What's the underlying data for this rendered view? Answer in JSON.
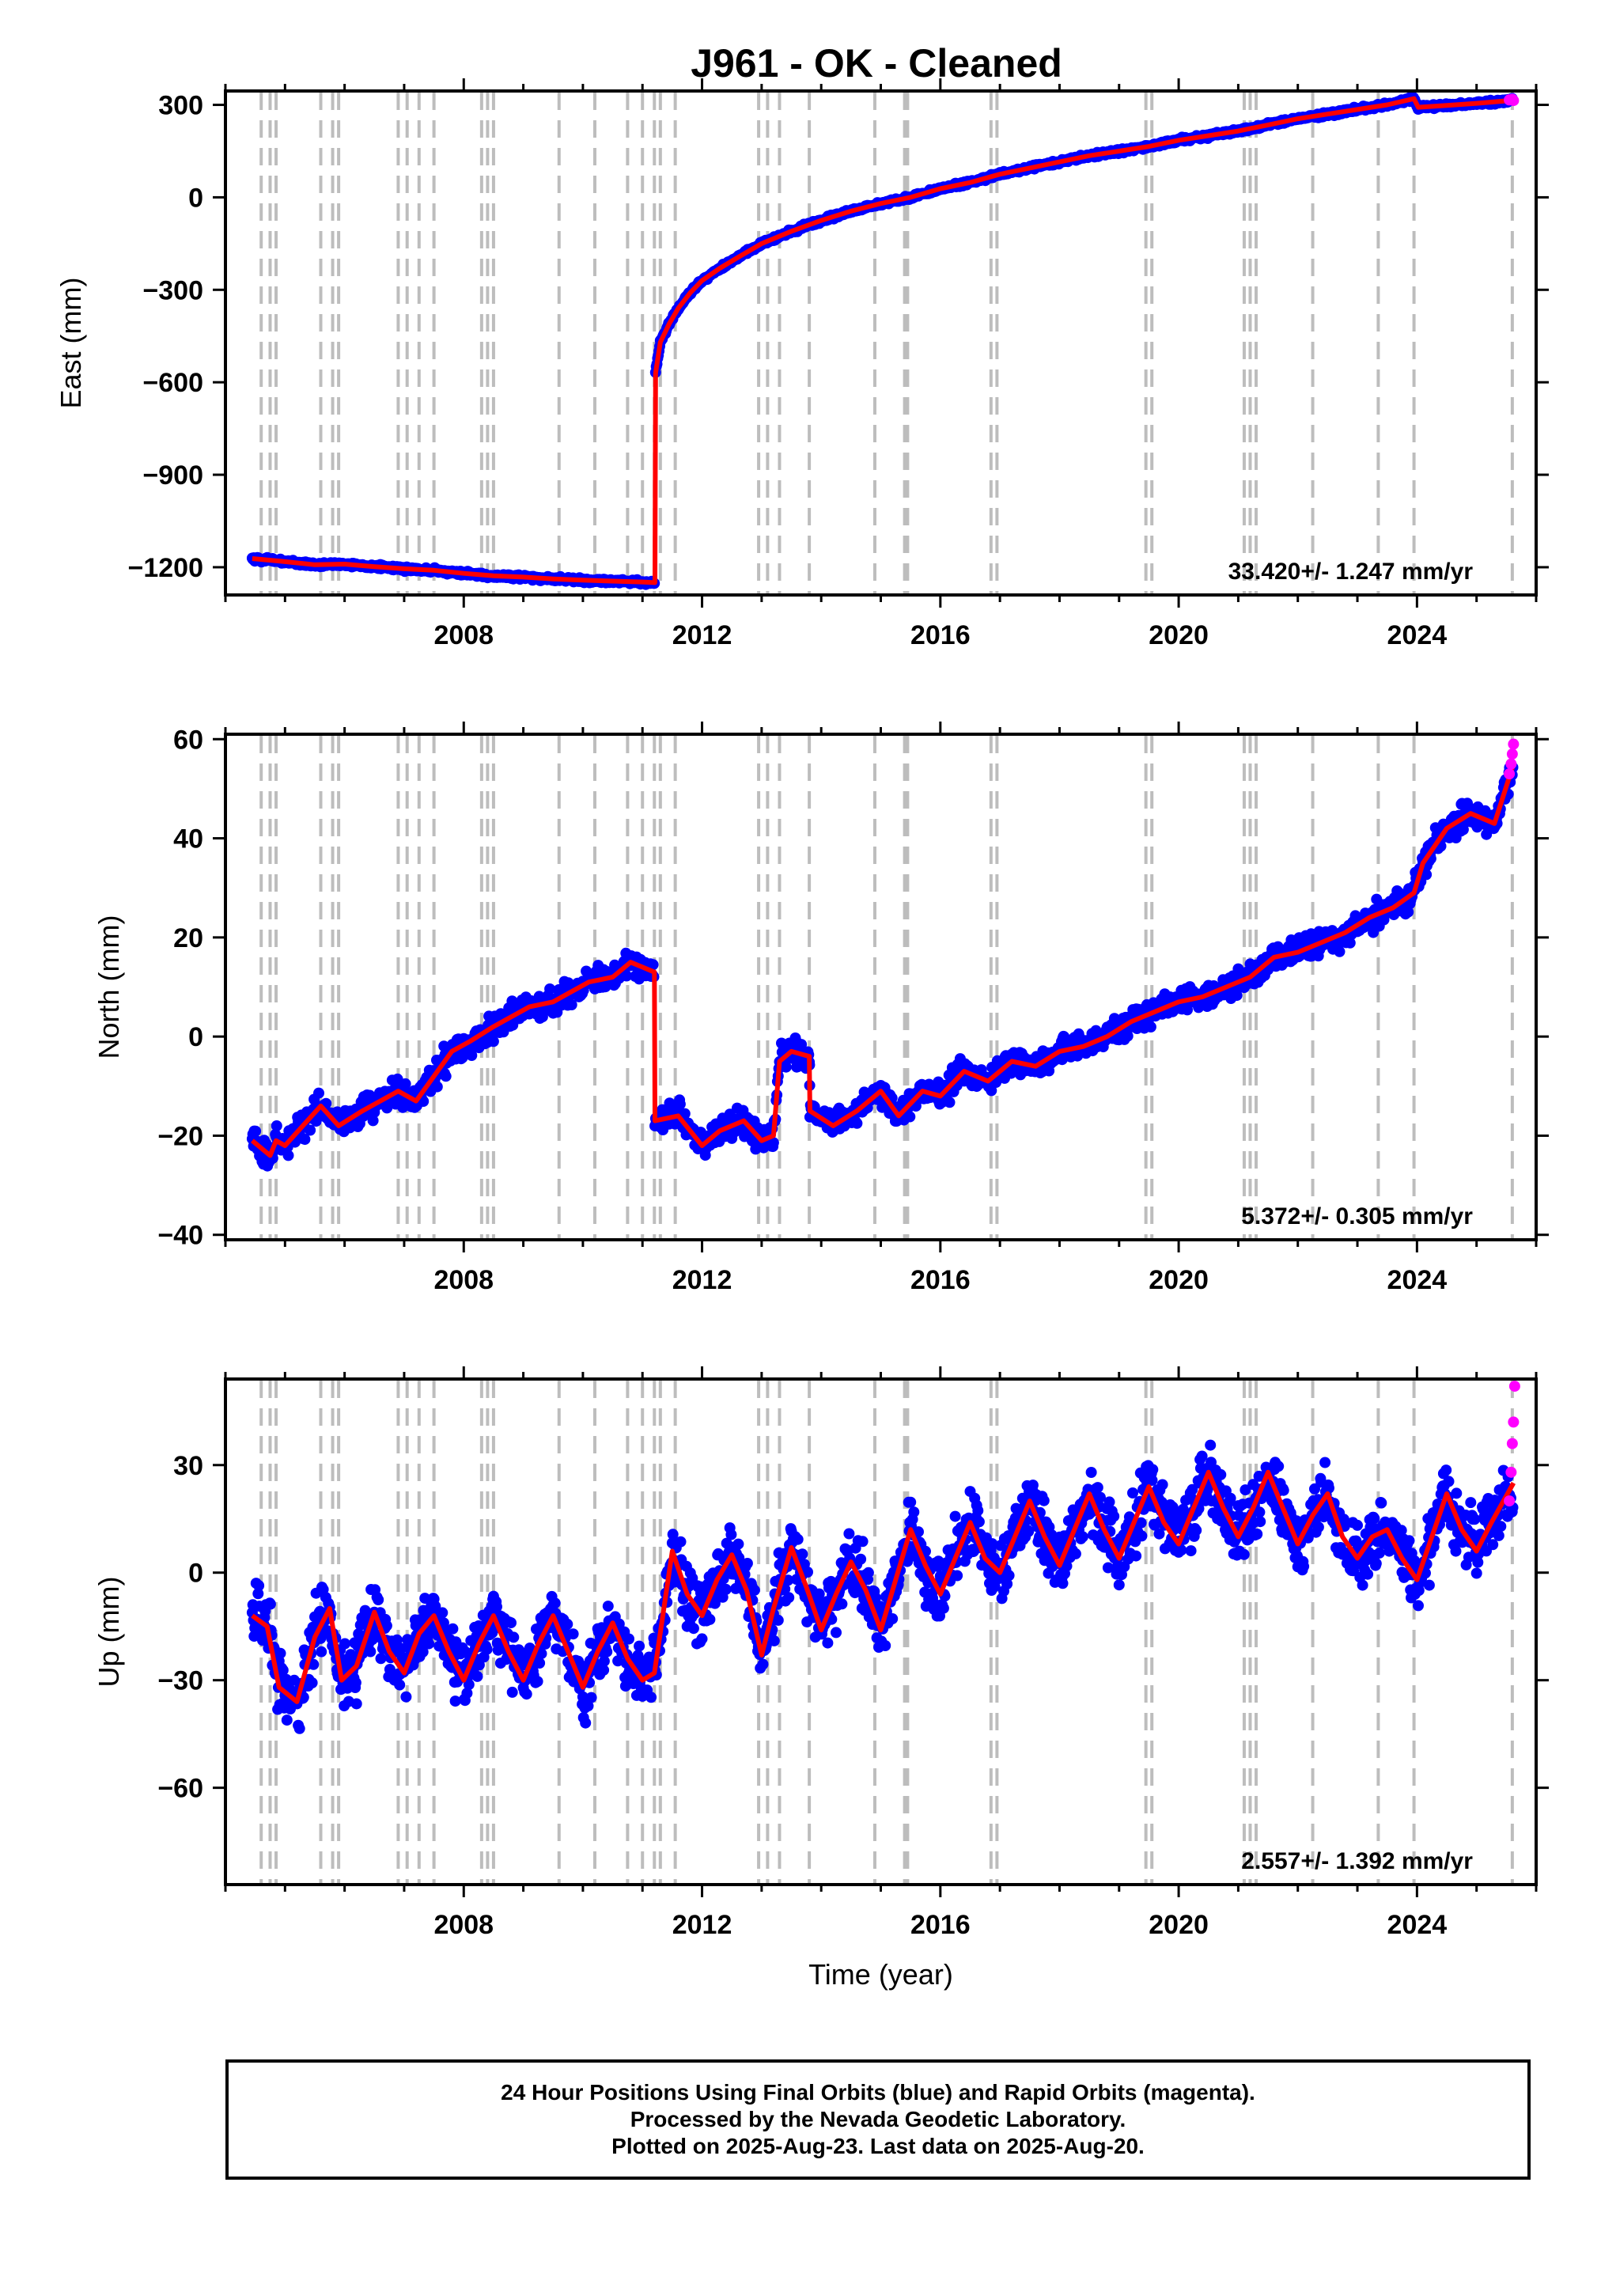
{
  "title": "J961  - OK - Cleaned",
  "colors": {
    "final": "#0000ff",
    "rapid": "#ff00ff",
    "model": "#ff0000",
    "events": "#bdbdbd"
  },
  "footer": {
    "line1": "24 Hour Positions Using Final Orbits (blue) and Rapid Orbits (magenta).",
    "line2": "Processed by the Nevada Geodetic Laboratory.",
    "line3": "Plotted on 2025-Aug-23. Last data on 2025-Aug-20."
  },
  "chart_data": [
    {
      "type": "scatter",
      "ylabel": "East (mm)",
      "xlabel": "",
      "xlim": [
        2004.0,
        2026.0
      ],
      "ylim": [
        -1290,
        345
      ],
      "xticks": [
        2008,
        2012,
        2016,
        2020,
        2024
      ],
      "yticks": [
        -1200,
        -900,
        -600,
        -300,
        0,
        300
      ],
      "rate_label": "33.420+/- 1.247 mm/yr",
      "event_lines": [
        2004.6,
        2004.75,
        2004.85,
        2005.6,
        2005.8,
        2005.9,
        2006.9,
        2007.05,
        2007.25,
        2007.5,
        2008.3,
        2008.4,
        2008.5,
        2009.6,
        2010.2,
        2010.75,
        2011.0,
        2011.2,
        2011.3,
        2011.55,
        2012.95,
        2013.1,
        2013.3,
        2013.8,
        2014.9,
        2015.4,
        2015.45,
        2016.85,
        2016.95,
        2019.45,
        2019.55,
        2021.1,
        2021.2,
        2021.3,
        2022.25,
        2023.35,
        2023.95,
        2025.6
      ],
      "x": [
        2004.45,
        2004.9,
        2005.5,
        2006.0,
        2006.5,
        2007.0,
        2007.5,
        2008.0,
        2008.5,
        2009.0,
        2009.5,
        2010.0,
        2010.5,
        2011.0,
        2011.21,
        2011.22,
        2011.3,
        2011.45,
        2011.6,
        2011.8,
        2012.0,
        2012.3,
        2012.6,
        2013.0,
        2013.5,
        2014.0,
        2014.5,
        2015.0,
        2015.5,
        2016.0,
        2016.5,
        2017.0,
        2017.5,
        2018.0,
        2018.5,
        2019.0,
        2019.5,
        2020.0,
        2020.5,
        2021.0,
        2021.5,
        2022.0,
        2022.5,
        2023.0,
        2023.5,
        2023.95,
        2024.02,
        2024.5,
        2025.0,
        2025.62
      ],
      "y": [
        -1172,
        -1180,
        -1192,
        -1190,
        -1198,
        -1205,
        -1210,
        -1220,
        -1228,
        -1232,
        -1238,
        -1242,
        -1245,
        -1248,
        -1250,
        -570,
        -470,
        -410,
        -360,
        -310,
        -270,
        -230,
        -195,
        -150,
        -110,
        -75,
        -45,
        -20,
        0,
        28,
        48,
        75,
        95,
        115,
        135,
        150,
        165,
        185,
        200,
        215,
        235,
        255,
        270,
        285,
        300,
        320,
        292,
        298,
        305,
        315
      ],
      "rapid_x": [
        2025.55,
        2025.6,
        2025.62
      ],
      "rapid_y": [
        316,
        318,
        314
      ]
    },
    {
      "type": "scatter",
      "ylabel": "North (mm)",
      "xlabel": "",
      "xlim": [
        2004.0,
        2026.0
      ],
      "ylim": [
        -41,
        61
      ],
      "xticks": [
        2008,
        2012,
        2016,
        2020,
        2024
      ],
      "yticks": [
        -40,
        -20,
        0,
        20,
        40,
        60
      ],
      "rate_label": "5.372+/- 0.305 mm/yr",
      "event_lines": [
        2004.6,
        2004.75,
        2004.85,
        2005.6,
        2005.8,
        2005.9,
        2006.9,
        2007.05,
        2007.25,
        2007.5,
        2008.3,
        2008.4,
        2008.5,
        2009.6,
        2010.2,
        2010.75,
        2011.0,
        2011.2,
        2011.3,
        2011.55,
        2012.95,
        2013.1,
        2013.3,
        2013.8,
        2014.9,
        2015.4,
        2015.45,
        2016.85,
        2016.95,
        2019.45,
        2019.55,
        2021.1,
        2021.2,
        2021.3,
        2022.25,
        2023.35,
        2023.95,
        2025.6
      ],
      "x": [
        2004.45,
        2004.75,
        2004.85,
        2005.0,
        2005.3,
        2005.6,
        2005.9,
        2006.3,
        2006.6,
        2006.9,
        2007.2,
        2007.5,
        2007.8,
        2008.1,
        2008.5,
        2008.8,
        2009.1,
        2009.5,
        2009.8,
        2010.1,
        2010.5,
        2010.8,
        2011.0,
        2011.2,
        2011.21,
        2011.6,
        2012.0,
        2012.3,
        2012.7,
        2013.0,
        2013.2,
        2013.3,
        2013.5,
        2013.8,
        2013.81,
        2014.2,
        2014.6,
        2015.0,
        2015.3,
        2015.7,
        2016.0,
        2016.4,
        2016.8,
        2017.2,
        2017.6,
        2018.0,
        2018.4,
        2018.8,
        2019.2,
        2019.6,
        2020.0,
        2020.4,
        2020.8,
        2021.2,
        2021.6,
        2022.0,
        2022.4,
        2022.8,
        2023.2,
        2023.6,
        2023.95,
        2024.1,
        2024.5,
        2024.9,
        2025.3,
        2025.62
      ],
      "y": [
        -21,
        -24,
        -21,
        -22,
        -18,
        -14,
        -18,
        -15,
        -13,
        -11,
        -13,
        -8,
        -3,
        -1,
        2,
        4,
        6,
        7,
        9,
        11,
        12,
        15,
        14,
        13,
        -17,
        -16,
        -22,
        -19,
        -17,
        -21,
        -20,
        -5,
        -3,
        -4,
        -15,
        -18,
        -15,
        -11,
        -16,
        -11,
        -12,
        -7,
        -9,
        -5,
        -6,
        -3,
        -2,
        0,
        3,
        5,
        7,
        8,
        10,
        12,
        16,
        17,
        19,
        21,
        24,
        26,
        29,
        35,
        42,
        45,
        43,
        55
      ],
      "rapid_x": [
        2025.55,
        2025.58,
        2025.6,
        2025.62
      ],
      "rapid_y": [
        53,
        55,
        57,
        59
      ]
    },
    {
      "type": "scatter",
      "ylabel": "Up (mm)",
      "xlabel": "Time (year)",
      "xlim": [
        2004.0,
        2026.0
      ],
      "ylim": [
        -87,
        54
      ],
      "xticks": [
        2008,
        2012,
        2016,
        2020,
        2024
      ],
      "yticks": [
        -60,
        -30,
        0,
        30
      ],
      "rate_label": "2.557+/- 1.392 mm/yr",
      "event_lines": [
        2004.6,
        2004.75,
        2004.85,
        2005.6,
        2005.8,
        2005.9,
        2006.9,
        2007.05,
        2007.25,
        2007.5,
        2008.3,
        2008.4,
        2008.5,
        2009.6,
        2010.2,
        2010.75,
        2011.0,
        2011.2,
        2011.3,
        2011.55,
        2012.95,
        2013.1,
        2013.3,
        2013.8,
        2014.9,
        2015.4,
        2015.45,
        2016.85,
        2016.95,
        2019.45,
        2019.55,
        2021.1,
        2021.2,
        2021.3,
        2022.25,
        2023.35,
        2023.95,
        2025.6
      ],
      "x": [
        2004.45,
        2004.7,
        2004.9,
        2005.2,
        2005.5,
        2005.75,
        2005.95,
        2006.2,
        2006.5,
        2006.75,
        2007.0,
        2007.25,
        2007.5,
        2007.75,
        2008.0,
        2008.25,
        2008.5,
        2008.75,
        2009.0,
        2009.25,
        2009.5,
        2009.75,
        2010.0,
        2010.25,
        2010.5,
        2010.75,
        2011.0,
        2011.2,
        2011.5,
        2011.75,
        2012.0,
        2012.25,
        2012.5,
        2012.75,
        2013.0,
        2013.2,
        2013.5,
        2013.75,
        2014.0,
        2014.25,
        2014.5,
        2014.75,
        2015.0,
        2015.25,
        2015.5,
        2015.75,
        2016.0,
        2016.25,
        2016.5,
        2016.75,
        2017.0,
        2017.25,
        2017.5,
        2017.75,
        2018.0,
        2018.25,
        2018.5,
        2018.75,
        2019.0,
        2019.25,
        2019.5,
        2019.75,
        2020.0,
        2020.25,
        2020.5,
        2020.75,
        2021.0,
        2021.25,
        2021.5,
        2021.75,
        2022.0,
        2022.25,
        2022.5,
        2022.75,
        2023.0,
        2023.25,
        2023.5,
        2023.75,
        2024.0,
        2024.25,
        2024.5,
        2024.75,
        2025.0,
        2025.25,
        2025.62
      ],
      "y": [
        -12,
        -15,
        -32,
        -36,
        -18,
        -10,
        -30,
        -26,
        -11,
        -22,
        -28,
        -17,
        -12,
        -22,
        -30,
        -20,
        -12,
        -22,
        -30,
        -20,
        -12,
        -22,
        -32,
        -22,
        -14,
        -24,
        -30,
        -28,
        6,
        -6,
        -12,
        -2,
        5,
        -5,
        -23,
        -10,
        7,
        -4,
        -16,
        -6,
        3,
        -5,
        -16,
        -2,
        12,
        2,
        -6,
        4,
        14,
        4,
        0,
        10,
        20,
        10,
        2,
        12,
        22,
        12,
        4,
        14,
        24,
        14,
        8,
        18,
        28,
        18,
        10,
        18,
        28,
        18,
        8,
        16,
        22,
        10,
        4,
        10,
        12,
        4,
        -2,
        10,
        22,
        12,
        6,
        14,
        25
      ],
      "rapid_x": [
        2025.55,
        2025.58,
        2025.6,
        2025.62,
        2025.64
      ],
      "rapid_y": [
        20,
        28,
        36,
        42,
        52
      ]
    }
  ]
}
